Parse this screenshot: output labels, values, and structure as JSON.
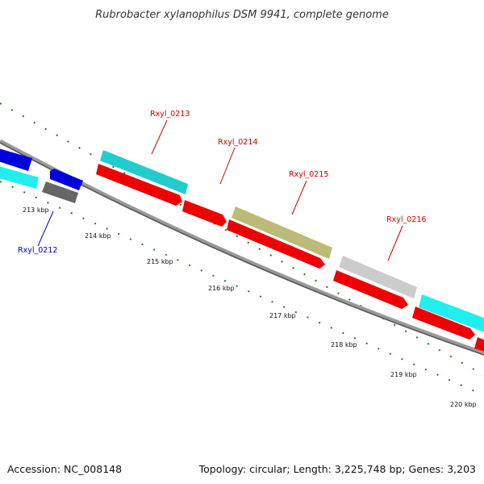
{
  "title": "Rubrobacter xylanophilus DSM 9941, complete genome",
  "footer": {
    "accession": "Accession: NC_008148",
    "summary": "Topology: circular; Length: 3,225,748 bp; Genes: 3,203"
  },
  "colors": {
    "backbone": "#777777",
    "tick": "#1f7a1f",
    "label_red": "#cc0000",
    "label_blue": "#0000cc"
  },
  "ticks": [
    {
      "label": "213 kbp"
    },
    {
      "label": "214 kbp"
    },
    {
      "label": "215 kbp"
    },
    {
      "label": "216 kbp"
    },
    {
      "label": "217 kbp"
    },
    {
      "label": "218 kbp"
    },
    {
      "label": "219 kbp"
    },
    {
      "label": "220 kbp"
    }
  ],
  "gene_labels": [
    {
      "name": "Rxyl_0212",
      "color": "#0000cc"
    },
    {
      "name": "Rxyl_0213",
      "color": "#cc0000"
    },
    {
      "name": "Rxyl_0214",
      "color": "#cc0000"
    },
    {
      "name": "Rxyl_0215",
      "color": "#cc0000"
    },
    {
      "name": "Rxyl_0216",
      "color": "#cc0000"
    }
  ],
  "genes": [
    {
      "lane": "outer-forward",
      "color": "#0000dd",
      "strand": "+"
    },
    {
      "lane": "outer-reverse",
      "color": "#0000dd",
      "strand": "-"
    },
    {
      "lane": "outer-forward",
      "color": "#22cccc",
      "strand": "+"
    },
    {
      "lane": "inner-forward",
      "color": "#22cccc",
      "strand": "+"
    },
    {
      "lane": "inner-forward",
      "color": "#ee0000",
      "strand": "+"
    },
    {
      "lane": "outer-reverse",
      "color": "#666666",
      "strand": "-"
    },
    {
      "lane": "outer-forward",
      "color": "#bbbb77",
      "strand": "+"
    },
    {
      "lane": "inner-forward",
      "color": "#ee0000",
      "strand": "+"
    },
    {
      "lane": "inner-forward",
      "color": "#ee0000",
      "strand": "+"
    },
    {
      "lane": "outer-forward",
      "color": "#cccccc",
      "strand": "+"
    },
    {
      "lane": "inner-forward",
      "color": "#ee0000",
      "strand": "+"
    },
    {
      "lane": "outer-forward",
      "color": "#22eeee",
      "strand": "+"
    },
    {
      "lane": "inner-forward",
      "color": "#ee0000",
      "strand": "+"
    },
    {
      "lane": "inner-forward",
      "color": "#ee0000",
      "strand": "+"
    }
  ]
}
